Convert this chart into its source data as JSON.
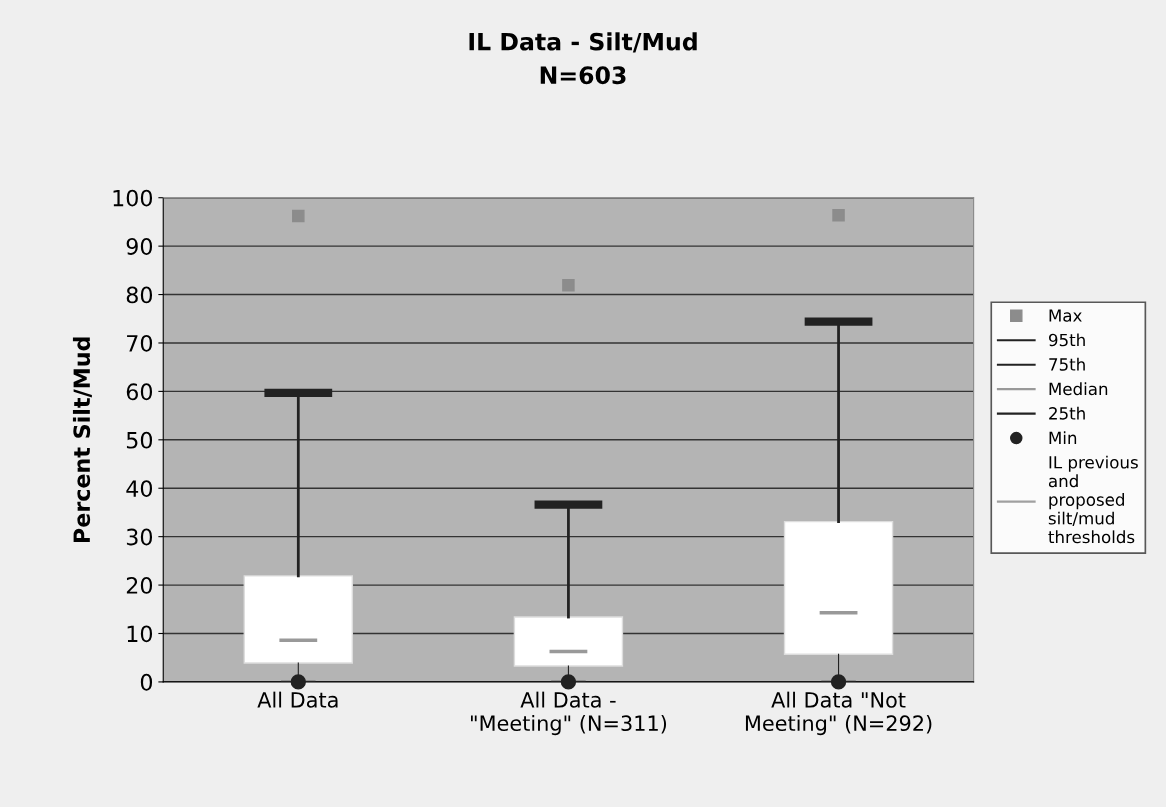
{
  "chart_data": {
    "type": "box",
    "title": "IL Data - Silt/Mud\nN=603",
    "ylabel": "Percent Silt/Mud",
    "categories": [
      "All Data",
      "All Data -\n\"Meeting\" (N=311)",
      "All Data \"Not\nMeeting\" (N=292)"
    ],
    "boxes": [
      {
        "low": 0,
        "q1": 3.9,
        "median": 8.6,
        "q3": 21.9,
        "high": 59.7
      },
      {
        "low": 0,
        "q1": 3.3,
        "median": 6.3,
        "q3": 13.4,
        "high": 36.6
      },
      {
        "low": 0,
        "q1": 5.7,
        "median": 14.3,
        "q3": 33.1,
        "high": 74.4
      }
    ],
    "series": [
      {
        "name": "Max",
        "type": "scatter",
        "color": "#8c8c8c",
        "marker": "square",
        "values": [
          96.2,
          81.9,
          96.4
        ]
      },
      {
        "name": "95th",
        "type": "line",
        "color": "#222222",
        "marker": "none",
        "line_style": "solid",
        "values": [
          null,
          null,
          null
        ]
      },
      {
        "name": "75th",
        "type": "line",
        "color": "#222222",
        "marker": "none",
        "line_style": "solid",
        "values": [
          null,
          null,
          null
        ]
      },
      {
        "name": "Median",
        "type": "line",
        "color": "#999999",
        "marker": "none",
        "line_style": "solid",
        "values": [
          null,
          null,
          null
        ]
      },
      {
        "name": "25th",
        "type": "line",
        "color": "#222222",
        "marker": "none",
        "line_style": "solid",
        "values": [
          null,
          null,
          null
        ]
      },
      {
        "name": "Min",
        "type": "scatter",
        "color": "#222222",
        "marker": "circle",
        "values": [
          0,
          0,
          0
        ]
      },
      {
        "name": "IL previous\nand\nproposed\nsilt/mud\nthresholds",
        "type": "line",
        "color": "#a0a0a0",
        "marker": "none",
        "line_style": "solid",
        "values": [
          null,
          null,
          null
        ]
      }
    ],
    "ylim": [
      0,
      100
    ],
    "yticks": [
      0,
      10,
      20,
      30,
      40,
      50,
      60,
      70,
      80,
      90,
      100
    ],
    "grid": "y",
    "legend": "right"
  }
}
